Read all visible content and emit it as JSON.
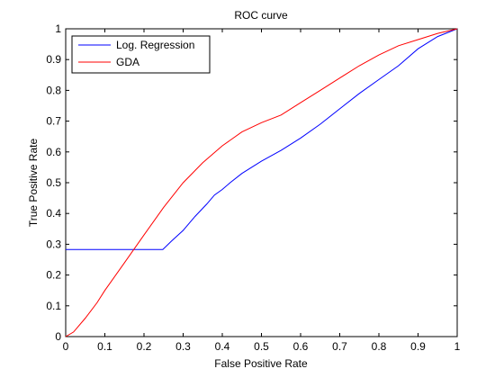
{
  "chart_data": {
    "type": "line",
    "title": "ROC curve",
    "xlabel": "False Positive Rate",
    "ylabel": "True Positive Rate",
    "xlim": [
      0,
      1
    ],
    "ylim": [
      0,
      1
    ],
    "xticks": [
      "0",
      "0.1",
      "0.2",
      "0.3",
      "0.4",
      "0.5",
      "0.6",
      "0.7",
      "0.8",
      "0.9",
      "1"
    ],
    "yticks": [
      "0",
      "0.1",
      "0.2",
      "0.3",
      "0.4",
      "0.5",
      "0.6",
      "0.7",
      "0.8",
      "0.9",
      "1"
    ],
    "grid": false,
    "legend_position": "top-left",
    "series": [
      {
        "name": "Log. Regression",
        "color": "#0000ff",
        "x": [
          0,
          0.1,
          0.2,
          0.248,
          0.27,
          0.3,
          0.33,
          0.36,
          0.38,
          0.4,
          0.42,
          0.45,
          0.5,
          0.55,
          0.6,
          0.65,
          0.7,
          0.75,
          0.8,
          0.85,
          0.9,
          0.95,
          1.0
        ],
        "y": [
          0.283,
          0.283,
          0.283,
          0.283,
          0.31,
          0.345,
          0.39,
          0.43,
          0.46,
          0.478,
          0.5,
          0.53,
          0.57,
          0.605,
          0.645,
          0.69,
          0.74,
          0.79,
          0.835,
          0.88,
          0.935,
          0.975,
          1.0
        ]
      },
      {
        "name": "GDA",
        "color": "#ff0000",
        "x": [
          0,
          0.02,
          0.05,
          0.08,
          0.1,
          0.15,
          0.2,
          0.25,
          0.3,
          0.35,
          0.4,
          0.45,
          0.5,
          0.55,
          0.6,
          0.65,
          0.7,
          0.75,
          0.8,
          0.85,
          0.9,
          0.95,
          1.0
        ],
        "y": [
          0,
          0.015,
          0.06,
          0.11,
          0.15,
          0.24,
          0.33,
          0.42,
          0.5,
          0.565,
          0.62,
          0.665,
          0.695,
          0.72,
          0.76,
          0.8,
          0.84,
          0.88,
          0.915,
          0.945,
          0.965,
          0.985,
          1.0
        ]
      }
    ]
  }
}
